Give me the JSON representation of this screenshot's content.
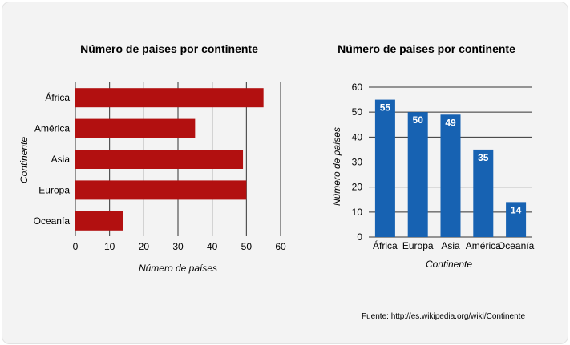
{
  "colors": {
    "hbar": "#b21010",
    "vbar": "#1762b2",
    "grid": "#333333",
    "bg": "#f3f3f3"
  },
  "chart_data": [
    {
      "type": "bar",
      "orientation": "horizontal",
      "title": "Número de paises por continente",
      "xlabel": "Número de países",
      "ylabel": "Continente",
      "categories": [
        "África",
        "América",
        "Asia",
        "Europa",
        "Oceanía"
      ],
      "values": [
        55,
        35,
        49,
        50,
        14
      ],
      "xticks": [
        0,
        10,
        20,
        30,
        40,
        50,
        60
      ],
      "xlim": [
        0,
        60
      ],
      "grid": "vertical"
    },
    {
      "type": "bar",
      "orientation": "vertical",
      "title": "Número de paises por continente",
      "xlabel": "Continente",
      "ylabel": "Número de países",
      "categories": [
        "África",
        "Europa",
        "Asia",
        "América",
        "Oceanía"
      ],
      "values": [
        55,
        50,
        49,
        35,
        14
      ],
      "data_labels": [
        "55",
        "50",
        "49",
        "35",
        "14"
      ],
      "yticks": [
        0,
        10,
        20,
        30,
        40,
        50,
        60
      ],
      "ylim": [
        0,
        60
      ],
      "grid": "horizontal"
    }
  ],
  "source": "Fuente: http://es.wikipedia.org/wiki/Continente"
}
